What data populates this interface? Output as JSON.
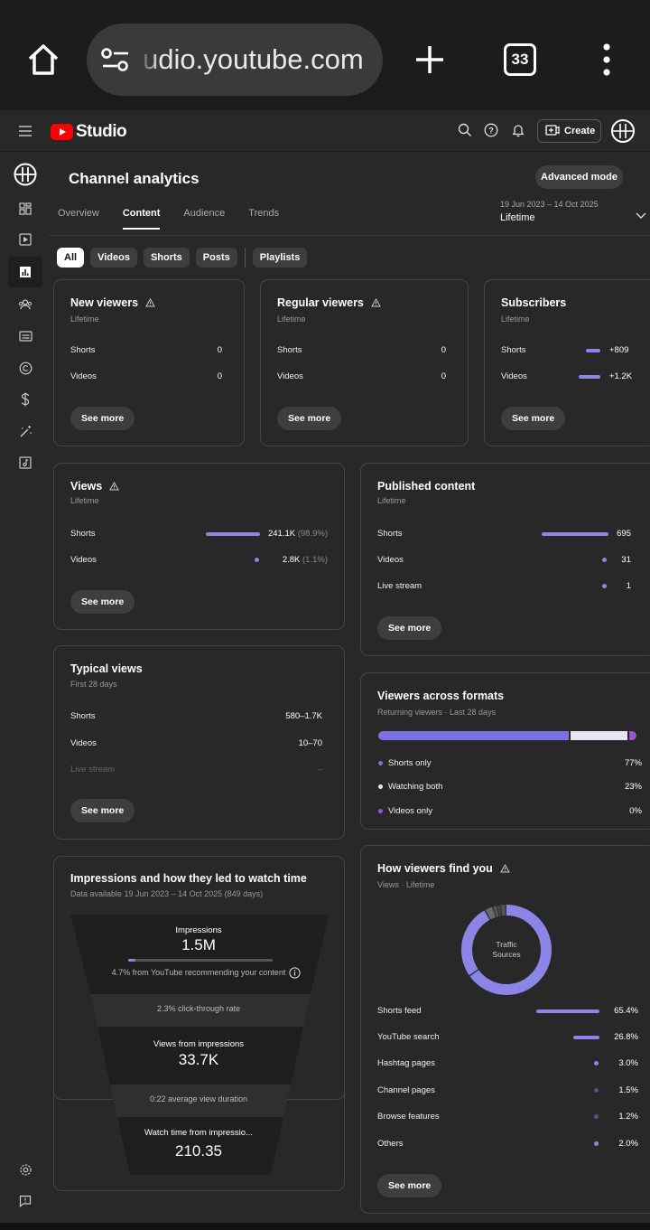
{
  "browser": {
    "url": "udio.youtube.com",
    "tab_count": "33"
  },
  "header": {
    "brand": "Studio",
    "create_label": "Create"
  },
  "page": {
    "title": "Channel analytics",
    "advanced_mode": "Advanced mode",
    "tabs": [
      "Overview",
      "Content",
      "Audience",
      "Trends"
    ],
    "date_range": "19 Jun 2023 – 14 Oct 2025",
    "date_label": "Lifetime",
    "chips": [
      "All",
      "Videos",
      "Shorts",
      "Posts",
      "Playlists"
    ]
  },
  "new_viewers": {
    "title": "New viewers",
    "sub": "Lifetime",
    "rows": [
      {
        "label": "Shorts",
        "value": "0"
      },
      {
        "label": "Videos",
        "value": "0"
      }
    ],
    "see_more": "See more"
  },
  "regular_viewers": {
    "title": "Regular viewers",
    "sub": "Lifetime",
    "rows": [
      {
        "label": "Shorts",
        "value": "0"
      },
      {
        "label": "Videos",
        "value": "0"
      }
    ],
    "see_more": "See more"
  },
  "subscribers": {
    "title": "Subscribers",
    "sub": "Lifetime",
    "rows": [
      {
        "label": "Shorts",
        "value": "+809"
      },
      {
        "label": "Videos",
        "value": "+1.2K"
      }
    ],
    "see_more": "See more"
  },
  "views": {
    "title": "Views",
    "sub": "Lifetime",
    "rows": [
      {
        "label": "Shorts",
        "value": "241.1K",
        "pct": "(98.9%)",
        "share": 0.989
      },
      {
        "label": "Videos",
        "value": "2.8K",
        "pct": "(1.1%)",
        "share": 0.011
      }
    ],
    "see_more": "See more"
  },
  "published": {
    "title": "Published content",
    "sub": "Lifetime",
    "rows": [
      {
        "label": "Shorts",
        "value": "695"
      },
      {
        "label": "Videos",
        "value": "31"
      },
      {
        "label": "Live stream",
        "value": "1"
      }
    ],
    "see_more": "See more"
  },
  "typical_views": {
    "title": "Typical views",
    "sub": "First 28 days",
    "rows": [
      {
        "label": "Shorts",
        "value": "580–1.7K"
      },
      {
        "label": "Videos",
        "value": "10–70"
      },
      {
        "label": "Live stream",
        "value": "–"
      }
    ],
    "see_more": "See more"
  },
  "formats": {
    "title": "Viewers across formats",
    "sub": "Returning viewers · Last 28 days",
    "rows": [
      {
        "label": "Shorts only",
        "value": "77%",
        "share": 0.77
      },
      {
        "label": "Watching both",
        "value": "23%",
        "share": 0.23
      },
      {
        "label": "Videos only",
        "value": "0%",
        "share": 0.0
      }
    ],
    "colors": {
      "shorts": "#7a72e0",
      "both": "#e8e6f5",
      "videos": "#9a52d6"
    }
  },
  "impressions": {
    "title": "Impressions and how they led to watch time",
    "sub": "Data available 19 Jun 2023 – 14 Oct 2025 (849 days)",
    "impressions_label": "Impressions",
    "impressions_value": "1.5M",
    "recommend_note": "4.7% from YouTube recommending your content",
    "recommend_share": 0.047,
    "ctr": "2.3% click-through rate",
    "views_label": "Views from impressions",
    "views_value": "33.7K",
    "avd": "0:22 average view duration",
    "watch_label": "Watch time from impressio...",
    "watch_value": "210.35"
  },
  "sources": {
    "title": "How viewers find you",
    "sub": "Views · Lifetime",
    "donut_label_1": "Traffic",
    "donut_label_2": "Sources",
    "rows": [
      {
        "label": "Shorts feed",
        "value": "65.4%",
        "share": 0.654
      },
      {
        "label": "YouTube search",
        "value": "26.8%",
        "share": 0.268
      },
      {
        "label": "Hashtag pages",
        "value": "3.0%",
        "share": 0.03
      },
      {
        "label": "Channel pages",
        "value": "1.5%",
        "share": 0.015
      },
      {
        "label": "Browse features",
        "value": "1.2%",
        "share": 0.012
      },
      {
        "label": "Others",
        "value": "2.0%",
        "share": 0.02
      }
    ],
    "see_more": "See more"
  }
}
